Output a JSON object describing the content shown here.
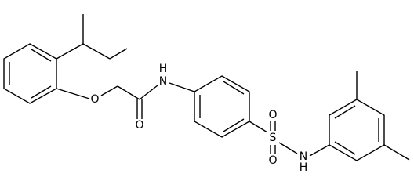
{
  "atoms": [
    {
      "label": "O"
    },
    {
      "label": "O"
    },
    {
      "label": "H"
    },
    {
      "label": "N"
    },
    {
      "label": "S"
    },
    {
      "label": "O"
    },
    {
      "label": "O"
    },
    {
      "label": "N"
    },
    {
      "label": "H"
    }
  ]
}
